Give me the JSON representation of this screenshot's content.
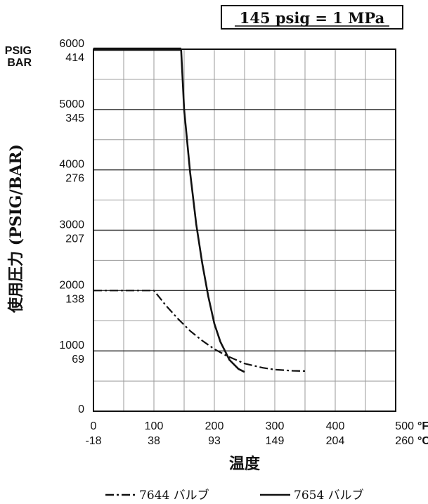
{
  "chart_data": {
    "type": "line",
    "note": "145 psig = 1 MPa",
    "ylabel": "使用圧力 (PSIG/BAR)",
    "xlabel": "温度",
    "y_units": [
      "PSIG",
      "BAR"
    ],
    "x_units": [
      "°F",
      "°C"
    ],
    "xlim": [
      0,
      500
    ],
    "ylim": [
      0,
      6000
    ],
    "x_ticks": [
      {
        "f": "0",
        "c": "-18"
      },
      {
        "f": "100",
        "c": "38"
      },
      {
        "f": "200",
        "c": "93"
      },
      {
        "f": "300",
        "c": "149"
      },
      {
        "f": "400",
        "c": "204"
      },
      {
        "f": "500",
        "c": "260"
      }
    ],
    "y_ticks": [
      {
        "psig": "0",
        "bar": ""
      },
      {
        "psig": "1000",
        "bar": "69"
      },
      {
        "psig": "2000",
        "bar": "138"
      },
      {
        "psig": "3000",
        "bar": "207"
      },
      {
        "psig": "4000",
        "bar": "276"
      },
      {
        "psig": "5000",
        "bar": "345"
      },
      {
        "psig": "6000",
        "bar": "414"
      }
    ],
    "grid": true,
    "legend_position": "bottom",
    "series": [
      {
        "name": "7644 バルブ",
        "style": "dash-dot",
        "x": [
          0,
          100,
          120,
          140,
          160,
          180,
          200,
          220,
          250,
          280,
          300,
          330,
          350
        ],
        "y": [
          2000,
          2000,
          1750,
          1530,
          1330,
          1170,
          1030,
          920,
          790,
          720,
          690,
          670,
          665
        ]
      },
      {
        "name": "7654 バルブ",
        "style": "solid",
        "x": [
          0,
          145,
          150,
          160,
          170,
          180,
          190,
          200,
          210,
          225,
          240,
          250
        ],
        "y": [
          6000,
          6000,
          5000,
          3950,
          3100,
          2450,
          1900,
          1450,
          1150,
          850,
          700,
          650
        ]
      }
    ]
  }
}
